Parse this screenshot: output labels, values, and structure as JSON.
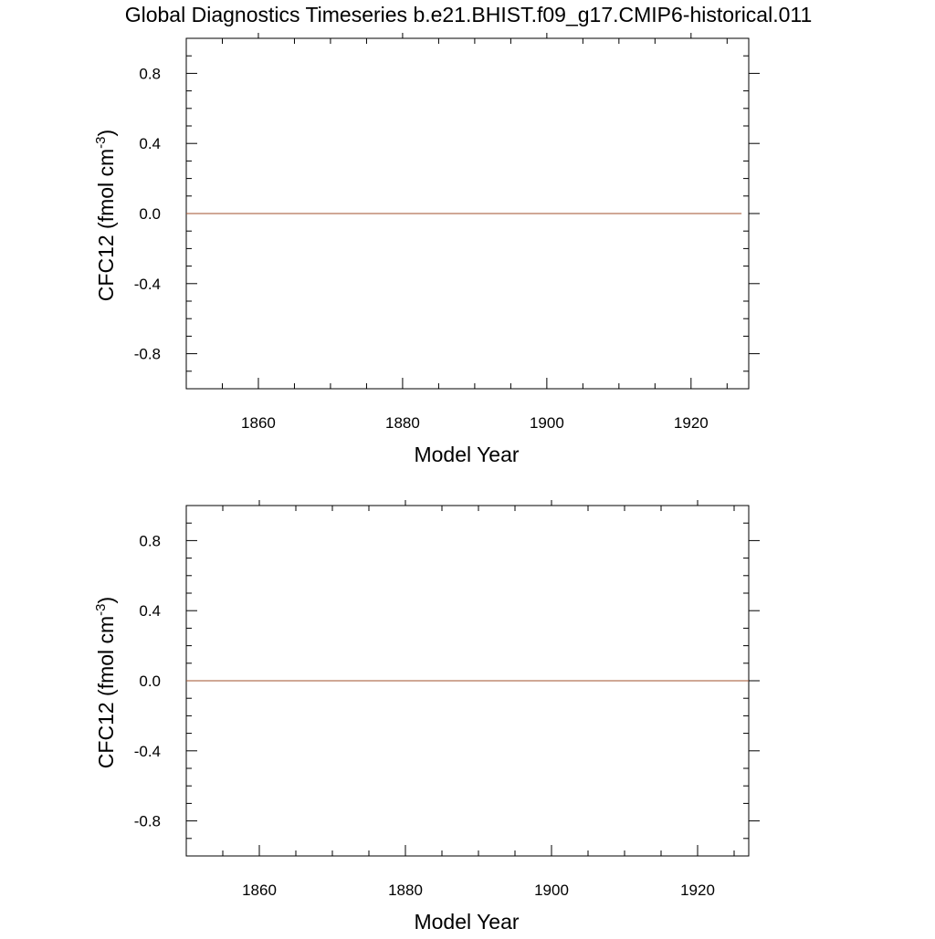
{
  "title": "Global Diagnostics Timeseries b.e21.BHIST.f09_g17.CMIP6-historical.011",
  "chart_data": [
    {
      "type": "line",
      "xlabel": "Model Year",
      "ylabel_main": "CFC12 (fmol cm",
      "ylabel_sup": "-3",
      "ylabel_close": ")",
      "xlim": [
        1850,
        1928
      ],
      "ylim": [
        -1.0,
        1.0
      ],
      "xticks": [
        1860,
        1880,
        1900,
        1920
      ],
      "xtick_labels": [
        "1860",
        "1880",
        "1900",
        "1920"
      ],
      "yticks": [
        0.8,
        0.4,
        0.0,
        -0.4,
        -0.8
      ],
      "ytick_labels": [
        "0.8",
        "0.4",
        "0.0",
        "-0.4",
        "-0.8"
      ],
      "series": [
        {
          "color": "#a0522d",
          "x": [
            1850,
            1927
          ],
          "y": [
            0.0,
            0.0
          ]
        }
      ]
    },
    {
      "type": "line",
      "xlabel": "Model Year",
      "ylabel_main": "CFC12 (fmol cm",
      "ylabel_sup": "-3",
      "ylabel_close": ")",
      "xlim": [
        1850,
        1927
      ],
      "ylim": [
        -1.0,
        1.0
      ],
      "xticks": [
        1860,
        1880,
        1900,
        1920
      ],
      "xtick_labels": [
        "1860",
        "1880",
        "1900",
        "1920"
      ],
      "yticks": [
        0.8,
        0.4,
        0.0,
        -0.4,
        -0.8
      ],
      "ytick_labels": [
        "0.8",
        "0.4",
        "0.0",
        "-0.4",
        "-0.8"
      ],
      "series": [
        {
          "color": "#a0522d",
          "x": [
            1850,
            1927
          ],
          "y": [
            0.0,
            0.0
          ]
        }
      ]
    }
  ]
}
